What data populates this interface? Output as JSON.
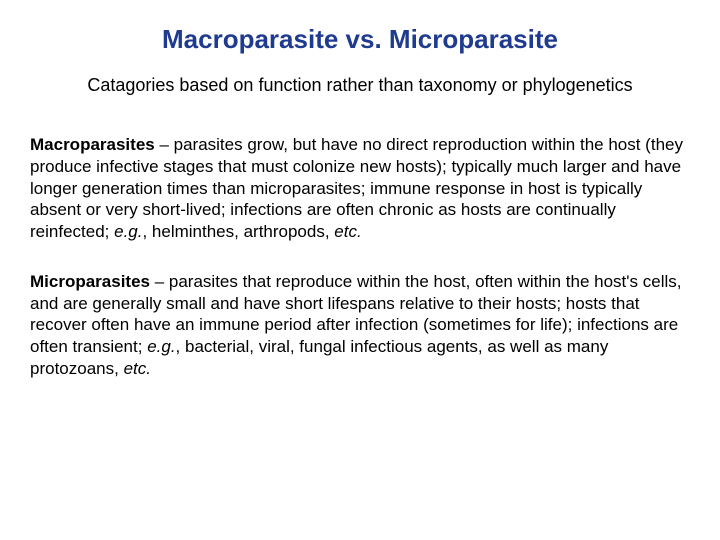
{
  "colors": {
    "title_color": "#1f3b8f",
    "body_color": "#000000",
    "background": "#ffffff"
  },
  "typography": {
    "title_fontsize": 26,
    "subtitle_fontsize": 18,
    "body_fontsize": 17,
    "font_family": "Arial"
  },
  "title": "Macroparasite vs. Microparasite",
  "subtitle": "Catagories based on function rather than taxonomy or phylogenetics",
  "macro": {
    "term": "Macroparasites",
    "body1": " – parasites grow, but have no direct reproduction within the host (they produce infective stages that must colonize new hosts); typically much larger and have longer generation times than microparasites; immune response in host is typically absent or very short-lived; infections are often chronic as hosts are continually reinfected; ",
    "eg": "e.g.",
    "body2": ", helminthes, arthropods, ",
    "etc": "etc."
  },
  "micro": {
    "term": "Microparasites",
    "body1": " – parasites that reproduce within the host, often within the host's cells, and are generally small and have short lifespans relative to their hosts; hosts that recover often have an immune period after infection (sometimes for life); infections are often transient; ",
    "eg": "e.g.",
    "body2": ", bacterial, viral, fungal infectious agents, as well as many protozoans, ",
    "etc": "etc."
  }
}
